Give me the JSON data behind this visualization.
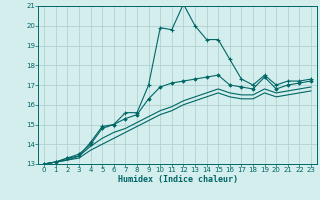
{
  "xlabel": "Humidex (Indice chaleur)",
  "ylabel": "",
  "bg_color": "#d4eeee",
  "grid_color": "#aacccc",
  "line_color": "#006666",
  "xlim": [
    -0.5,
    23.5
  ],
  "ylim": [
    13,
    21
  ],
  "yticks": [
    13,
    14,
    15,
    16,
    17,
    18,
    19,
    20,
    21
  ],
  "xticks": [
    0,
    1,
    2,
    3,
    4,
    5,
    6,
    7,
    8,
    9,
    10,
    11,
    12,
    13,
    14,
    15,
    16,
    17,
    18,
    19,
    20,
    21,
    22,
    23
  ],
  "line1_x": [
    0,
    1,
    2,
    3,
    4,
    5,
    6,
    7,
    8,
    9,
    10,
    11,
    12,
    13,
    14,
    15,
    16,
    17,
    18,
    19,
    20,
    21,
    22,
    23
  ],
  "line1_y": [
    13.0,
    13.1,
    13.3,
    13.4,
    14.1,
    14.9,
    15.0,
    15.6,
    15.6,
    17.0,
    19.9,
    19.8,
    21.1,
    20.0,
    19.3,
    19.3,
    18.3,
    17.3,
    17.0,
    17.5,
    17.0,
    17.2,
    17.2,
    17.3
  ],
  "line2_x": [
    0,
    1,
    2,
    3,
    4,
    5,
    6,
    7,
    8,
    9,
    10,
    11,
    12,
    13,
    14,
    15,
    16,
    17,
    18,
    19,
    20,
    21,
    22,
    23
  ],
  "line2_y": [
    13.0,
    13.1,
    13.3,
    13.5,
    14.0,
    14.8,
    15.0,
    15.3,
    15.5,
    16.3,
    16.9,
    17.1,
    17.2,
    17.3,
    17.4,
    17.5,
    17.0,
    16.9,
    16.8,
    17.4,
    16.8,
    17.0,
    17.1,
    17.2
  ],
  "line3_x": [
    0,
    1,
    2,
    3,
    4,
    5,
    6,
    7,
    8,
    9,
    10,
    11,
    12,
    13,
    14,
    15,
    16,
    17,
    18,
    19,
    20,
    21,
    22,
    23
  ],
  "line3_y": [
    13.0,
    13.1,
    13.2,
    13.4,
    13.9,
    14.3,
    14.6,
    14.8,
    15.1,
    15.4,
    15.7,
    15.9,
    16.2,
    16.4,
    16.6,
    16.8,
    16.6,
    16.5,
    16.5,
    16.8,
    16.6,
    16.7,
    16.8,
    16.9
  ],
  "line4_x": [
    0,
    1,
    2,
    3,
    4,
    5,
    6,
    7,
    8,
    9,
    10,
    11,
    12,
    13,
    14,
    15,
    16,
    17,
    18,
    19,
    20,
    21,
    22,
    23
  ],
  "line4_y": [
    13.0,
    13.1,
    13.2,
    13.3,
    13.7,
    14.0,
    14.3,
    14.6,
    14.9,
    15.2,
    15.5,
    15.7,
    16.0,
    16.2,
    16.4,
    16.6,
    16.4,
    16.3,
    16.3,
    16.6,
    16.4,
    16.5,
    16.6,
    16.7
  ],
  "tick_fontsize": 5.0,
  "xlabel_fontsize": 6.0
}
